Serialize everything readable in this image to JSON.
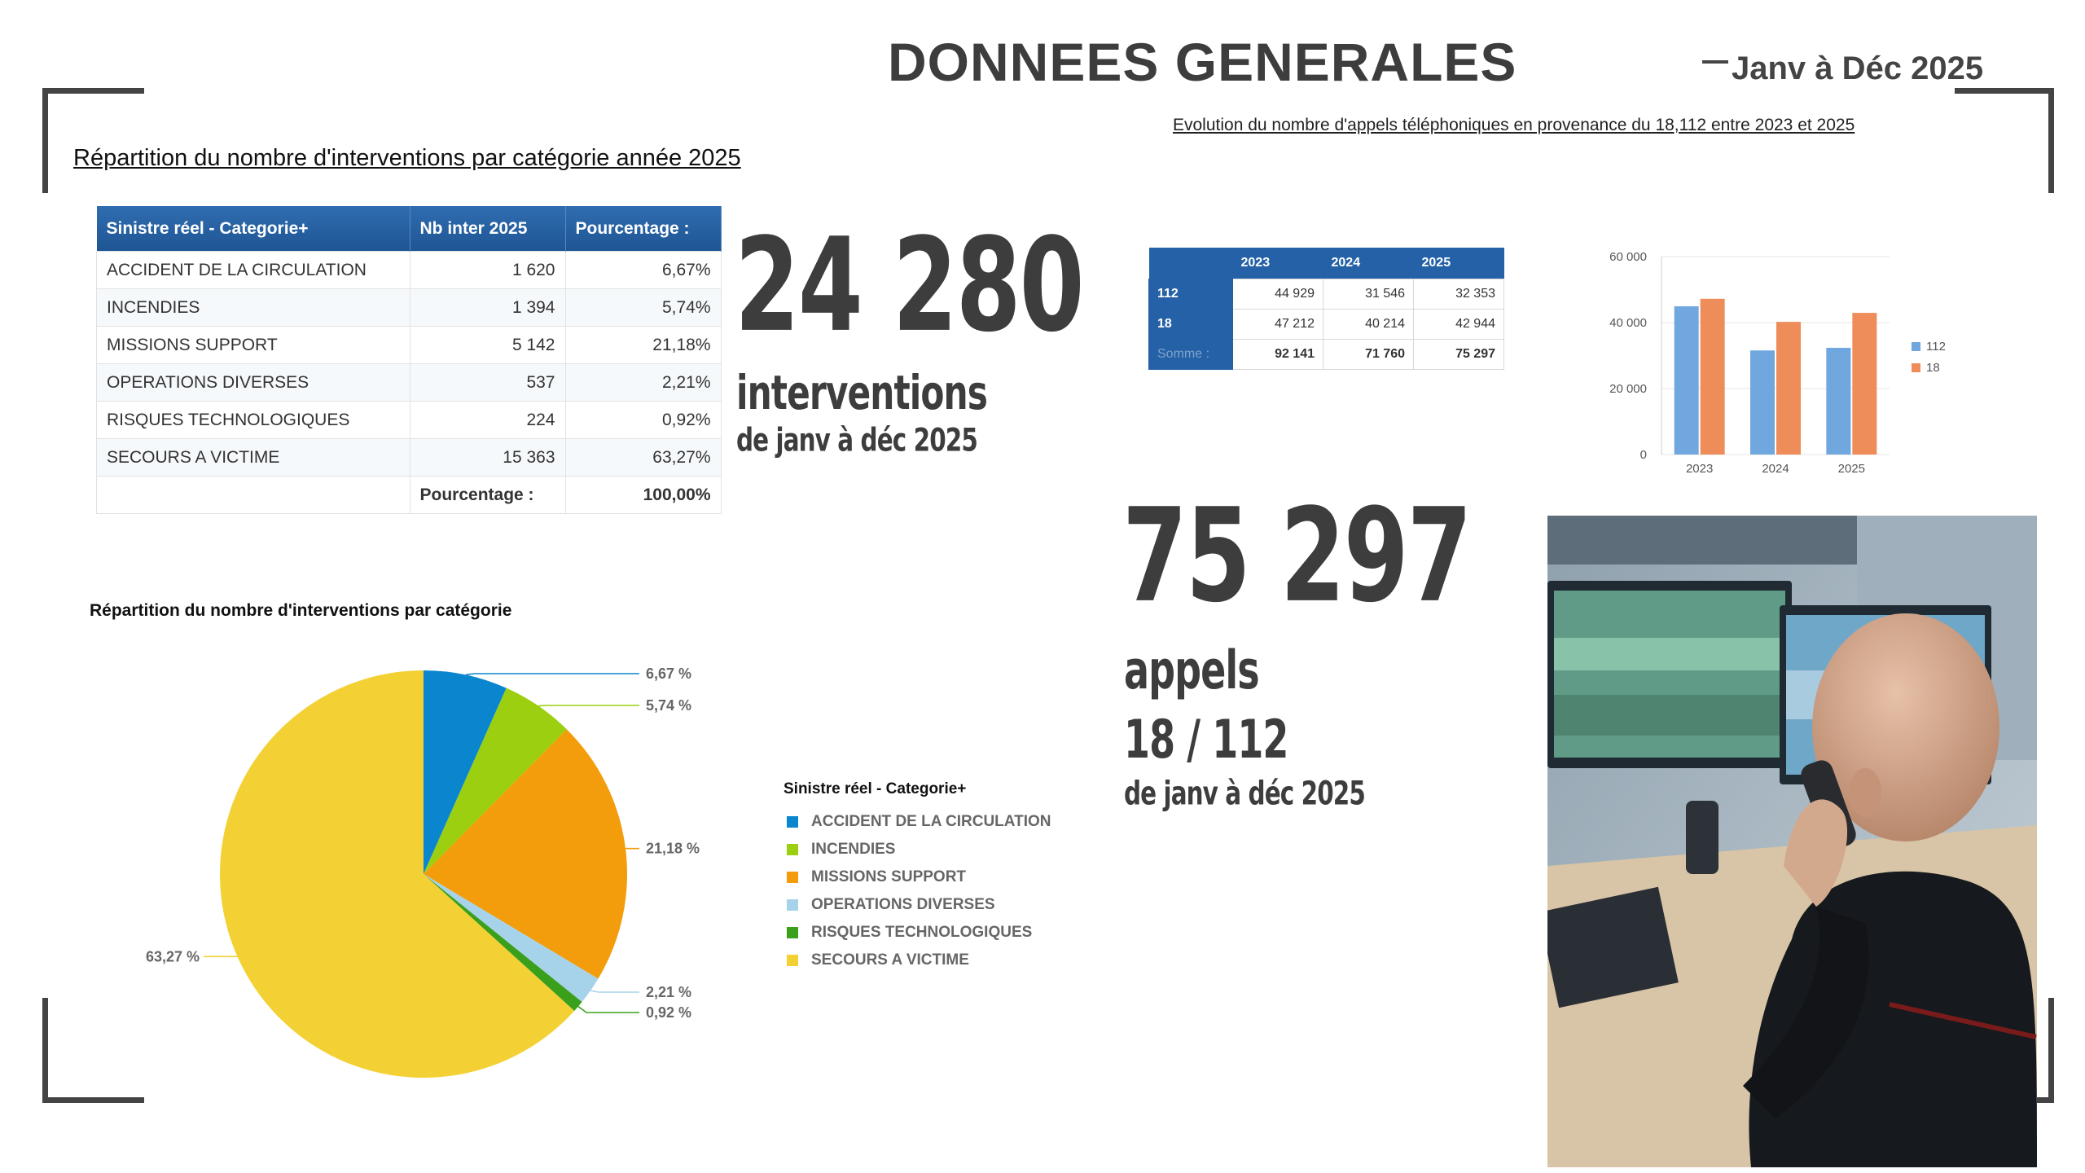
{
  "header": {
    "title": "DONNEES GENERALES",
    "period": "Janv à Déc 2025"
  },
  "interventions_section": {
    "subtitle": "Répartition du nombre d'interventions par catégorie année 2025",
    "table": {
      "columns": [
        "Sinistre réel - Categorie+",
        "Nb inter 2025",
        "Pourcentage :"
      ],
      "rows": [
        [
          "ACCIDENT DE LA CIRCULATION",
          "1 620",
          "6,67%"
        ],
        [
          "INCENDIES",
          "1 394",
          "5,74%"
        ],
        [
          "MISSIONS SUPPORT",
          "5 142",
          "21,18%"
        ],
        [
          "OPERATIONS DIVERSES",
          "537",
          "2,21%"
        ],
        [
          "RISQUES TECHNOLOGIQUES",
          "224",
          "0,92%"
        ],
        [
          "SECOURS A VICTIME",
          "15 363",
          "63,27%"
        ]
      ],
      "footer_label": "Pourcentage :",
      "footer_value": "100,00%"
    },
    "big_number": "24 280",
    "big_label": "interventions",
    "big_period": "de janv à déc 2025"
  },
  "calls_section": {
    "subtitle": "Evolution du nombre d'appels téléphoniques en provenance du 18,112  entre 2023 et 2025",
    "table": {
      "columns": [
        "",
        "2023",
        "2024",
        "2025"
      ],
      "rows": [
        [
          "112",
          "44 929",
          "31 546",
          "32 353"
        ],
        [
          "18",
          "47 212",
          "40 214",
          "42 944"
        ],
        [
          "Somme :",
          "92 141",
          "71 760",
          "75 297"
        ]
      ]
    },
    "big_number": "75 297",
    "big_label1": "appels",
    "big_label2": "18 / 112",
    "big_period": "de janv à déc 2025"
  },
  "chart_data": [
    {
      "type": "pie",
      "title": "Répartition du nombre d'interventions par catégorie",
      "legend_title": "Sinistre réel - Categorie+",
      "labels": [
        "ACCIDENT DE LA CIRCULATION",
        "INCENDIES",
        "MISSIONS SUPPORT",
        "OPERATIONS DIVERSES",
        "RISQUES TECHNOLOGIQUES",
        "SECOURS A VICTIME"
      ],
      "values": [
        6.67,
        5.74,
        21.18,
        2.21,
        0.92,
        63.27
      ],
      "data_labels": [
        "6,67 %",
        "5,74 %",
        "21,18 %",
        "2,21 %",
        "0,92 %",
        "63,27 %"
      ],
      "colors": [
        "#0a86cf",
        "#9ccf0f",
        "#f39c0c",
        "#a6d3ea",
        "#3aa01c",
        "#f3d135"
      ]
    },
    {
      "type": "bar",
      "categories": [
        "2023",
        "2024",
        "2025"
      ],
      "series": [
        {
          "name": "112",
          "values": [
            44929,
            31546,
            32353
          ],
          "color": "#6fa7de"
        },
        {
          "name": "18",
          "values": [
            47212,
            40214,
            42944
          ],
          "color": "#ef8d5a"
        }
      ],
      "ylim": [
        0,
        60000
      ],
      "yticks": [
        "0",
        "20 000",
        "40 000",
        "60 000"
      ],
      "legend_position": "right"
    }
  ]
}
